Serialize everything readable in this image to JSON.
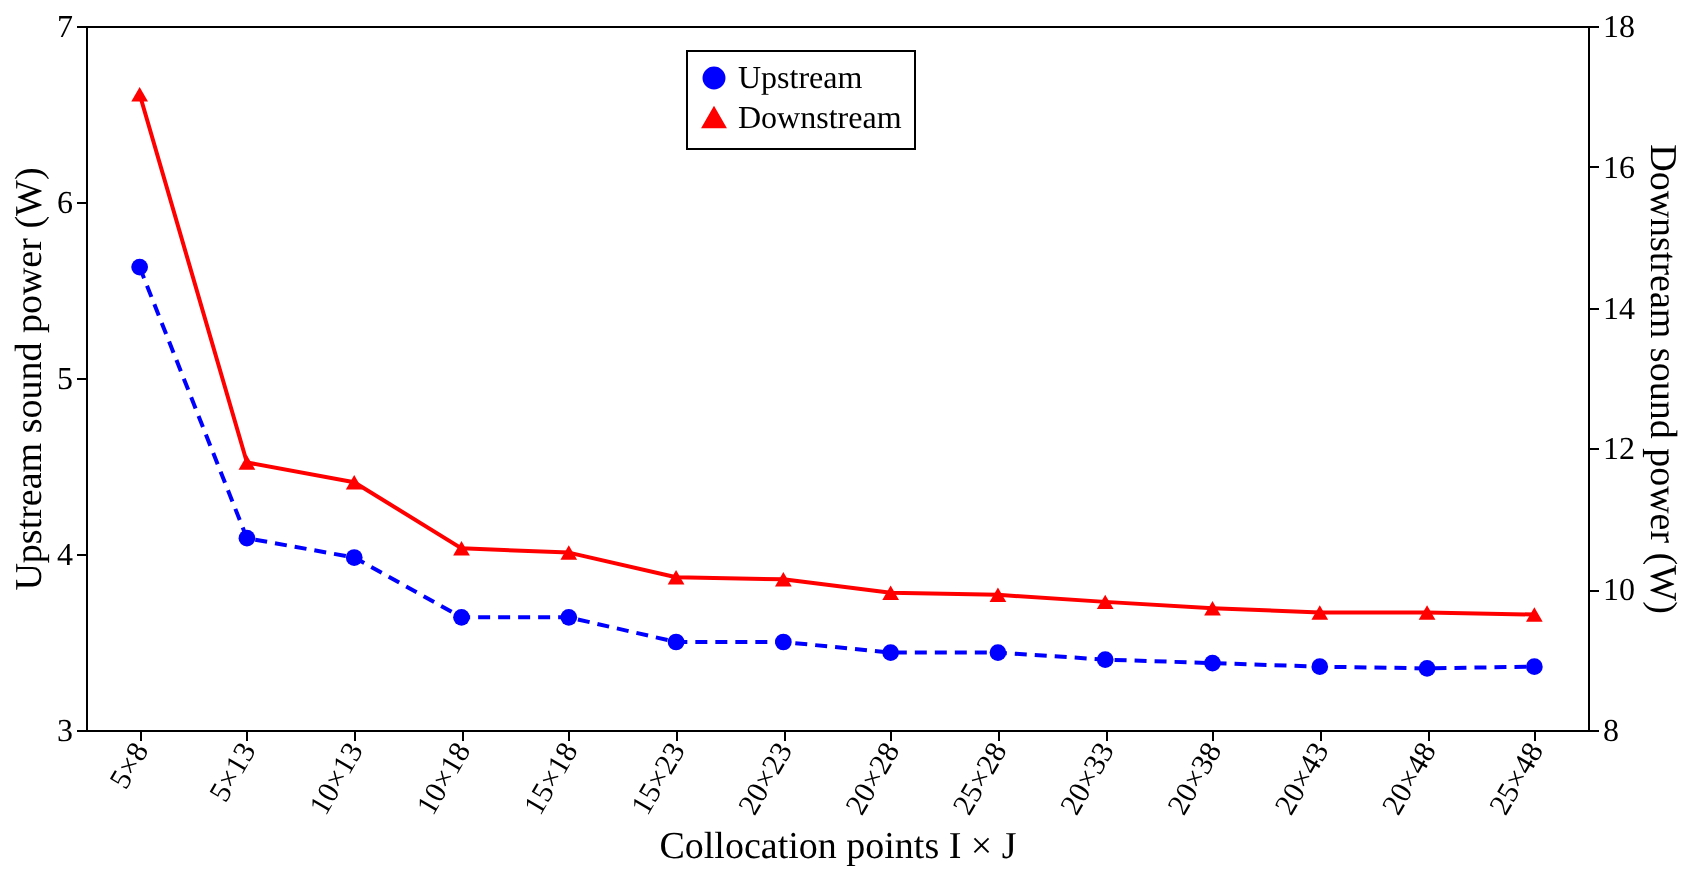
{
  "chart_data": {
    "type": "line",
    "xlabel": "Collocation points I × J",
    "ylabel": "Upstream sound power (W)",
    "y2label": "Downstream sound power (W)",
    "categories": [
      "5×8",
      "5×13",
      "10×13",
      "10×18",
      "15×18",
      "15×23",
      "20×23",
      "20×28",
      "25×28",
      "20×33",
      "20×38",
      "20×43",
      "20×48",
      "25×48"
    ],
    "series": [
      {
        "name": "Upstream",
        "color": "#0000ff",
        "marker": "circle",
        "line_style": "dashed",
        "values": [
          5.63,
          4.09,
          3.98,
          3.64,
          3.64,
          3.5,
          3.5,
          3.44,
          3.44,
          3.4,
          3.38,
          3.36,
          3.35,
          3.36
        ]
      },
      {
        "name": "Downstream",
        "color": "#ff0000",
        "marker": "triangle",
        "line_style": "solid",
        "axis": "y2",
        "values": [
          17.03,
          11.8,
          11.52,
          10.58,
          10.52,
          10.17,
          10.14,
          9.95,
          9.92,
          9.82,
          9.73,
          9.67,
          9.67,
          9.64
        ]
      }
    ],
    "ylim": [
      3,
      7
    ],
    "yticks": [
      3,
      4,
      5,
      6,
      7
    ],
    "y2lim": [
      8,
      18
    ],
    "y2ticks": [
      8,
      10,
      12,
      14,
      16,
      18
    ],
    "grid": false,
    "legend": "top"
  }
}
